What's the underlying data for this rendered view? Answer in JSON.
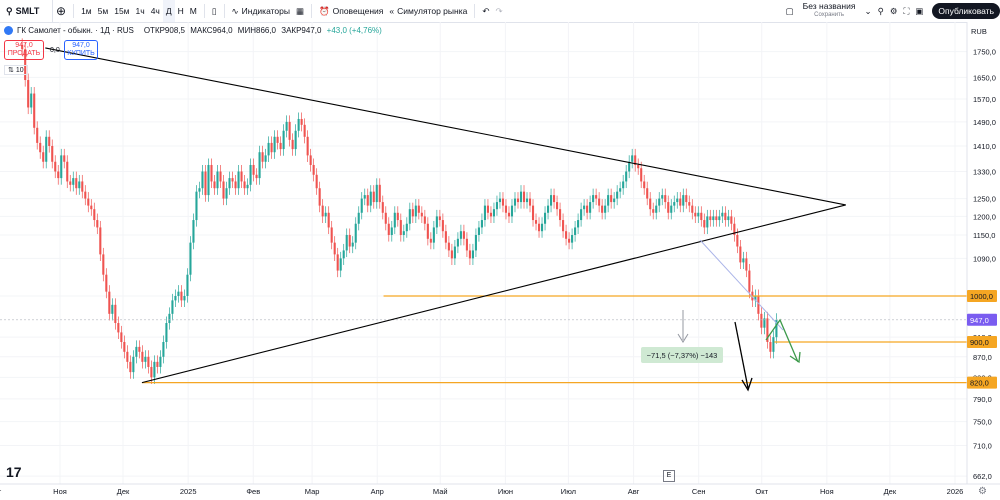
{
  "toolbar": {
    "symbol": "SMLT",
    "timeframes": [
      "1м",
      "5м",
      "15м",
      "1ч",
      "4ч",
      "Д",
      "Н",
      "М"
    ],
    "indicators_label": "Индикаторы",
    "alerts_label": "Оповещения",
    "replay_label": "Симулятор рынка",
    "layout_name": "Без названия",
    "layout_status": "Сохранить",
    "publish_label": "Опубликовать"
  },
  "legend": {
    "title": "ГК Самолет - обыкн. · 1Д · RUS",
    "open": "ОТКР908,5",
    "high": "МАКС964,0",
    "low": "МИН866,0",
    "close": "ЗАКР947,0",
    "change": "+43,0 (+4,76%)"
  },
  "trade": {
    "sell_price": "947,0",
    "sell_label": "ПРОДАТЬ",
    "spread": "0,0",
    "buy_price": "947,0",
    "buy_label": "КУПИТЬ",
    "quantity": "10"
  },
  "colors": {
    "up": "#26a69a",
    "down": "#ef5350",
    "level": "#f5a623",
    "trend": "#000000",
    "price": "#7a5cf0",
    "bg": "#ffffff"
  },
  "chart_data": {
    "type": "candlestick",
    "currency": "RUB",
    "price_axis_ticks": [
      1750,
      1650,
      1570,
      1490,
      1410,
      1330,
      1250,
      1200,
      1150,
      1090,
      1000,
      910,
      870,
      830,
      790,
      750,
      710,
      662
    ],
    "price_scale": "log",
    "time_axis_ticks": [
      "Окт",
      "Ноя",
      "Дек",
      "2025",
      "Фев",
      "Мар",
      "Апр",
      "Май",
      "Июн",
      "Июл",
      "Авг",
      "Сен",
      "Окт",
      "Ноя",
      "Дек",
      "2026"
    ],
    "x_range": [
      "2024-10-01",
      "2026-01-01"
    ],
    "y_range": [
      662,
      1780
    ],
    "price_labels": [
      {
        "text": "RUB",
        "y": 1780
      },
      {
        "text": "1000,0",
        "y": 1000,
        "color": "#f5a623"
      },
      {
        "text": "947,0",
        "y": 947,
        "color": "#7a5cf0"
      },
      {
        "text": "900,0",
        "y": 900,
        "color": "#f5a623"
      },
      {
        "text": "820,0",
        "y": 820,
        "color": "#f5a623"
      }
    ],
    "horizontal_levels": [
      {
        "y": 1000,
        "from": "2025-04-04",
        "to": "2026-01-01"
      },
      {
        "y": 900,
        "from": "2025-10-07",
        "to": "2026-01-01"
      },
      {
        "y": 820,
        "from": "2024-12-10",
        "to": "2026-01-01"
      }
    ],
    "trendlines": [
      {
        "from": [
          "2024-10-25",
          1765
        ],
        "to": [
          "2025-11-10",
          1232
        ]
      },
      {
        "from": [
          "2024-12-10",
          820
        ],
        "to": [
          "2025-11-10",
          1232
        ]
      }
    ],
    "measure_label": "−71,5 (−7,37%) −143",
    "candles_close": [
      1760,
      1640,
      1540,
      1590,
      1470,
      1420,
      1390,
      1360,
      1440,
      1410,
      1360,
      1330,
      1310,
      1380,
      1360,
      1300,
      1290,
      1310,
      1280,
      1300,
      1270,
      1250,
      1230,
      1220,
      1190,
      1170,
      1100,
      1050,
      1010,
      960,
      980,
      940,
      920,
      900,
      880,
      860,
      840,
      870,
      890,
      880,
      860,
      870,
      850,
      830,
      860,
      850,
      870,
      900,
      940,
      960,
      990,
      1000,
      1010,
      990,
      1000,
      1050,
      1130,
      1190,
      1270,
      1280,
      1330,
      1260,
      1350,
      1300,
      1280,
      1330,
      1300,
      1250,
      1280,
      1310,
      1300,
      1280,
      1330,
      1300,
      1280,
      1290,
      1350,
      1320,
      1310,
      1390,
      1360,
      1380,
      1420,
      1390,
      1440,
      1420,
      1400,
      1460,
      1490,
      1430,
      1400,
      1460,
      1500,
      1480,
      1440,
      1380,
      1350,
      1320,
      1280,
      1230,
      1200,
      1210,
      1170,
      1130,
      1100,
      1060,
      1090,
      1110,
      1150,
      1120,
      1130,
      1180,
      1210,
      1250,
      1260,
      1230,
      1270,
      1240,
      1290,
      1240,
      1210,
      1180,
      1150,
      1170,
      1210,
      1190,
      1150,
      1160,
      1180,
      1220,
      1200,
      1230,
      1210,
      1200,
      1180,
      1140,
      1130,
      1170,
      1200,
      1190,
      1160,
      1130,
      1110,
      1090,
      1120,
      1140,
      1160,
      1140,
      1110,
      1090,
      1110,
      1150,
      1170,
      1190,
      1230,
      1210,
      1200,
      1220,
      1240,
      1250,
      1230,
      1210,
      1200,
      1230,
      1250,
      1240,
      1270,
      1240,
      1250,
      1230,
      1190,
      1180,
      1160,
      1180,
      1210,
      1230,
      1260,
      1240,
      1220,
      1190,
      1160,
      1140,
      1130,
      1150,
      1170,
      1190,
      1220,
      1230,
      1210,
      1240,
      1260,
      1250,
      1230,
      1210,
      1230,
      1260,
      1240,
      1250,
      1270,
      1280,
      1300,
      1330,
      1360,
      1380,
      1350,
      1340,
      1300,
      1280,
      1250,
      1220,
      1210,
      1230,
      1250,
      1260,
      1240,
      1210,
      1230,
      1240,
      1250,
      1230,
      1260,
      1240,
      1230,
      1210,
      1200,
      1210,
      1190,
      1170,
      1200,
      1190,
      1200,
      1190,
      1200,
      1210,
      1190,
      1200,
      1180,
      1150,
      1120,
      1080,
      1090,
      1060,
      1010,
      990,
      1000,
      960,
      930,
      950,
      900,
      880,
      910,
      947
    ]
  }
}
